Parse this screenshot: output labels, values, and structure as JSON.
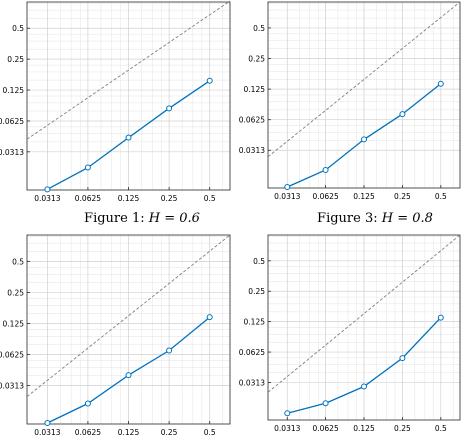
{
  "figures": [
    {
      "caption_prefix": "Figure 1:",
      "caption_math": "H = 0.6"
    },
    {
      "caption_prefix": "Figure 3:",
      "caption_math": "H = 0.8"
    },
    {
      "caption_prefix": "",
      "caption_math": ""
    },
    {
      "caption_prefix": "",
      "caption_math": ""
    }
  ],
  "colors": {
    "series": "#0072BD",
    "reference": "#7f7f7f",
    "grid": "#e3e3e3",
    "axis": "#262626"
  },
  "chart_data": [
    {
      "type": "line",
      "x_scale": "log2",
      "y_scale": "log2",
      "xlim": [
        0.0221,
        0.707
      ],
      "ylim": [
        0.0133,
        0.9
      ],
      "xticks": [
        0.0313,
        0.0625,
        0.125,
        0.25,
        0.5
      ],
      "xticklabels": [
        "0.0313",
        "0.0625",
        "0.125",
        "0.25",
        "0.5"
      ],
      "yticks": [
        0.0313,
        0.0625,
        0.125,
        0.25,
        0.5
      ],
      "yticklabels": [
        "0.0313",
        "0.0625",
        "0.125",
        "0.25",
        "0.5"
      ],
      "grid": true,
      "series": [
        {
          "x": [
            0.0313,
            0.0625,
            0.125,
            0.25,
            0.5
          ],
          "y": [
            0.0135,
            0.022,
            0.043,
            0.083,
            0.154
          ],
          "style": "solid-circle-markers"
        },
        {
          "x": [
            0.0221,
            0.707
          ],
          "y": [
            0.0415,
            0.92
          ],
          "style": "dashed"
        }
      ]
    },
    {
      "type": "line",
      "x_scale": "log2",
      "y_scale": "log2",
      "xlim": [
        0.0221,
        0.707
      ],
      "ylim": [
        0.0133,
        0.9
      ],
      "xticks": [
        0.0313,
        0.0625,
        0.125,
        0.25,
        0.5
      ],
      "xticklabels": [
        "0.0313",
        "0.0625",
        "0.125",
        "0.25",
        "0.5"
      ],
      "yticks": [
        0.0313,
        0.0625,
        0.125,
        0.25,
        0.5
      ],
      "yticklabels": [
        "0.0313",
        "0.0625",
        "0.125",
        "0.25",
        "0.5"
      ],
      "grid": true,
      "series": [
        {
          "x": [
            0.0313,
            0.0625,
            0.125,
            0.25,
            0.5
          ],
          "y": [
            0.0136,
            0.02,
            0.04,
            0.071,
            0.141
          ],
          "style": "solid-circle-markers"
        },
        {
          "x": [
            0.0221,
            0.707
          ],
          "y": [
            0.027,
            0.9
          ],
          "style": "dashed"
        }
      ]
    },
    {
      "type": "line",
      "x_scale": "log2",
      "y_scale": "log2",
      "xlim": [
        0.0221,
        0.707
      ],
      "ylim": [
        0.0133,
        0.9
      ],
      "xticks": [
        0.0313,
        0.0625,
        0.125,
        0.25,
        0.5
      ],
      "xticklabels": [
        "0.0313",
        "0.0625",
        "0.125",
        "0.25",
        "0.5"
      ],
      "yticks": [
        0.0313,
        0.0625,
        0.125,
        0.25,
        0.5
      ],
      "yticklabels": [
        "0.0313",
        "0.0625",
        "0.125",
        "0.25",
        "0.5"
      ],
      "grid": true,
      "series": [
        {
          "x": [
            0.0313,
            0.0625,
            0.125,
            0.25,
            0.5
          ],
          "y": [
            0.0136,
            0.021,
            0.0395,
            0.0685,
            0.144
          ],
          "style": "solid-circle-markers"
        },
        {
          "x": [
            0.0221,
            0.707
          ],
          "y": [
            0.0245,
            0.9
          ],
          "style": "dashed"
        }
      ]
    },
    {
      "type": "line",
      "x_scale": "log2",
      "y_scale": "log2",
      "xlim": [
        0.0221,
        0.707
      ],
      "ylim": [
        0.0133,
        0.9
      ],
      "xticks": [
        0.0313,
        0.0625,
        0.125,
        0.25,
        0.5
      ],
      "xticklabels": [
        "0.0313",
        "0.0625",
        "0.125",
        "0.25",
        "0.5"
      ],
      "yticks": [
        0.0313,
        0.0625,
        0.125,
        0.25,
        0.5
      ],
      "yticklabels": [
        "0.0313",
        "0.0625",
        "0.125",
        "0.25",
        "0.5"
      ],
      "grid": true,
      "series": [
        {
          "x": [
            0.0313,
            0.0625,
            0.125,
            0.25,
            0.5
          ],
          "y": [
            0.0155,
            0.0195,
            0.0285,
            0.0545,
            0.137
          ],
          "style": "solid-circle-markers"
        },
        {
          "x": [
            0.0221,
            0.707
          ],
          "y": [
            0.025,
            0.9
          ],
          "style": "dashed"
        }
      ]
    }
  ]
}
